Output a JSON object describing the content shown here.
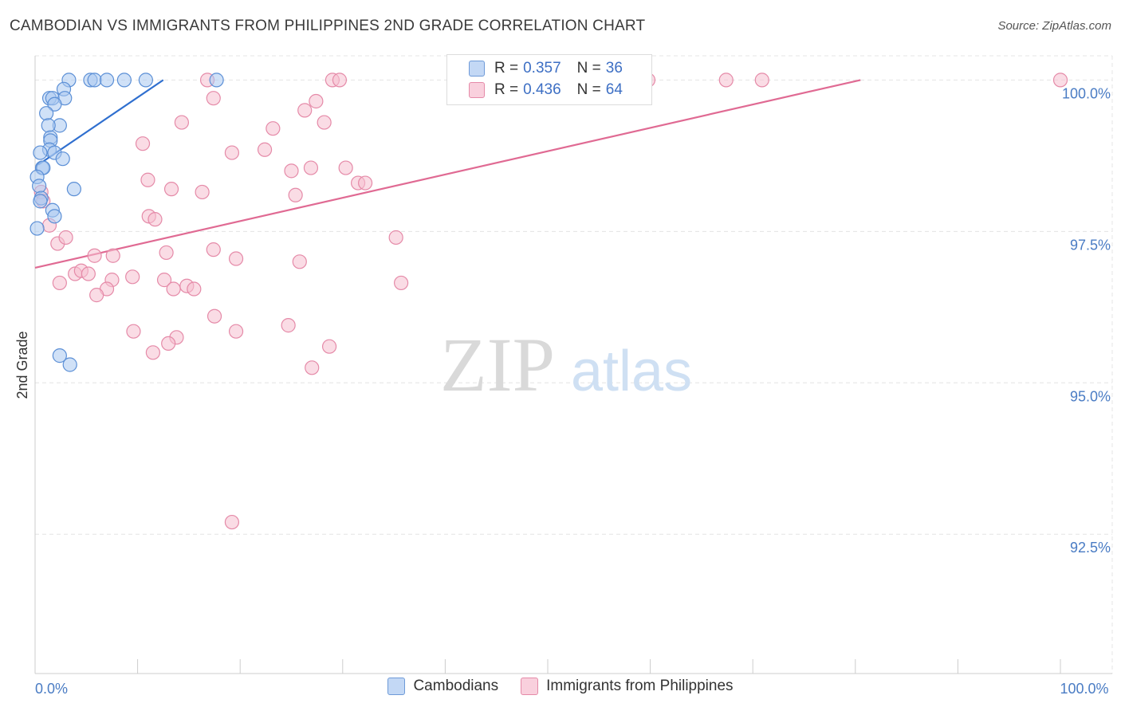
{
  "title": "CAMBODIAN VS IMMIGRANTS FROM PHILIPPINES 2ND GRADE CORRELATION CHART",
  "source": "Source: ZipAtlas.com",
  "watermark": {
    "zip": "ZIP",
    "atlas": "atlas"
  },
  "colors": {
    "blue_fill": "#a9c8f0",
    "blue_stroke": "#5b8fd6",
    "blue_line": "#2f6fcf",
    "pink_fill": "#f6bfd0",
    "pink_stroke": "#e58aa8",
    "pink_line": "#e06a93",
    "grid": "#e4e4e4",
    "axis": "#cccccc",
    "tick_text": "#4a7cc4"
  },
  "legend": [
    {
      "r_label": "R =",
      "r_value": "0.357",
      "n_label": "N =",
      "n_value": "36",
      "swatch": "#a9c8f0"
    },
    {
      "r_label": "R =",
      "r_value": "0.436",
      "n_label": "N =",
      "n_value": "64",
      "swatch": "#f6bfd0"
    }
  ],
  "bottom_legend": [
    {
      "label": "Cambodians",
      "swatch": "#a9c8f0"
    },
    {
      "label": "Immigrants from Philippines",
      "swatch": "#f6bfd0"
    }
  ],
  "chart_data": {
    "type": "scatter",
    "title": "CAMBODIAN VS IMMIGRANTS FROM PHILIPPINES 2ND GRADE CORRELATION CHART",
    "xlabel": "",
    "ylabel": "2nd Grade",
    "xlim": [
      0,
      100
    ],
    "ylim": [
      90.2,
      100.4
    ],
    "x_ticks": [
      {
        "value": 0,
        "label": "0.0%"
      },
      {
        "value": 100,
        "label": "100.0%"
      }
    ],
    "y_ticks": [
      {
        "value": 100.0,
        "label": "100.0%"
      },
      {
        "value": 97.5,
        "label": "97.5%"
      },
      {
        "value": 95.0,
        "label": "95.0%"
      },
      {
        "value": 92.5,
        "label": "92.5%"
      }
    ],
    "series": [
      {
        "name": "Cambodians",
        "r": 0.357,
        "n": 36,
        "trend": {
          "x": [
            0.3,
            12.5
          ],
          "y": [
            98.6,
            100.0
          ]
        },
        "points": [
          [
            3.3,
            100.0
          ],
          [
            5.4,
            100.0
          ],
          [
            5.8,
            100.0
          ],
          [
            7.0,
            100.0
          ],
          [
            8.7,
            100.0
          ],
          [
            17.7,
            100.0
          ],
          [
            10.8,
            100.0
          ],
          [
            2.8,
            99.85
          ],
          [
            1.4,
            99.7
          ],
          [
            1.7,
            99.7
          ],
          [
            2.9,
            99.7
          ],
          [
            1.9,
            99.6
          ],
          [
            1.1,
            99.45
          ],
          [
            2.4,
            99.25
          ],
          [
            1.3,
            99.25
          ],
          [
            1.5,
            99.05
          ],
          [
            1.5,
            99.0
          ],
          [
            1.4,
            98.85
          ],
          [
            0.5,
            98.8
          ],
          [
            1.9,
            98.8
          ],
          [
            2.7,
            98.7
          ],
          [
            0.7,
            98.55
          ],
          [
            0.8,
            98.55
          ],
          [
            0.2,
            98.4
          ],
          [
            0.4,
            98.25
          ],
          [
            3.8,
            98.2
          ],
          [
            0.6,
            98.05
          ],
          [
            0.5,
            98.0
          ],
          [
            1.7,
            97.85
          ],
          [
            1.9,
            97.75
          ],
          [
            0.2,
            97.55
          ],
          [
            2.4,
            95.45
          ],
          [
            3.4,
            95.3
          ]
        ]
      },
      {
        "name": "Immigrants from Philippines",
        "r": 0.436,
        "n": 64,
        "trend": {
          "x": [
            0.0,
            80.5
          ],
          "y": [
            96.9,
            100.0
          ]
        },
        "points": [
          [
            16.8,
            100.0
          ],
          [
            29.0,
            100.0
          ],
          [
            29.7,
            100.0
          ],
          [
            59.8,
            100.0
          ],
          [
            67.4,
            100.0
          ],
          [
            70.9,
            100.0
          ],
          [
            100.0,
            100.0
          ],
          [
            17.4,
            99.7
          ],
          [
            27.4,
            99.65
          ],
          [
            26.3,
            99.5
          ],
          [
            23.2,
            99.2
          ],
          [
            10.5,
            98.95
          ],
          [
            22.4,
            98.85
          ],
          [
            14.3,
            99.3
          ],
          [
            28.2,
            99.3
          ],
          [
            25.0,
            98.5
          ],
          [
            19.2,
            98.8
          ],
          [
            30.3,
            98.55
          ],
          [
            26.9,
            98.55
          ],
          [
            11.0,
            98.35
          ],
          [
            31.5,
            98.3
          ],
          [
            32.2,
            98.3
          ],
          [
            13.3,
            98.2
          ],
          [
            16.3,
            98.15
          ],
          [
            25.4,
            98.1
          ],
          [
            0.6,
            98.15
          ],
          [
            0.8,
            98.0
          ],
          [
            1.4,
            97.6
          ],
          [
            11.1,
            97.75
          ],
          [
            11.7,
            97.7
          ],
          [
            2.2,
            97.3
          ],
          [
            3.0,
            97.4
          ],
          [
            35.2,
            97.4
          ],
          [
            5.8,
            97.1
          ],
          [
            7.6,
            97.1
          ],
          [
            12.8,
            97.15
          ],
          [
            17.4,
            97.2
          ],
          [
            19.6,
            97.05
          ],
          [
            25.8,
            97.0
          ],
          [
            3.9,
            96.8
          ],
          [
            4.5,
            96.85
          ],
          [
            7.5,
            96.7
          ],
          [
            9.5,
            96.75
          ],
          [
            12.6,
            96.7
          ],
          [
            13.5,
            96.55
          ],
          [
            14.8,
            96.6
          ],
          [
            15.5,
            96.55
          ],
          [
            2.4,
            96.65
          ],
          [
            5.2,
            96.8
          ],
          [
            7.0,
            96.55
          ],
          [
            6.0,
            96.45
          ],
          [
            35.7,
            96.65
          ],
          [
            17.5,
            96.1
          ],
          [
            9.6,
            95.85
          ],
          [
            13.8,
            95.75
          ],
          [
            19.6,
            95.85
          ],
          [
            24.7,
            95.95
          ],
          [
            28.7,
            95.6
          ],
          [
            11.5,
            95.5
          ],
          [
            13.0,
            95.65
          ],
          [
            27.0,
            95.25
          ],
          [
            19.2,
            92.7
          ]
        ]
      }
    ]
  }
}
